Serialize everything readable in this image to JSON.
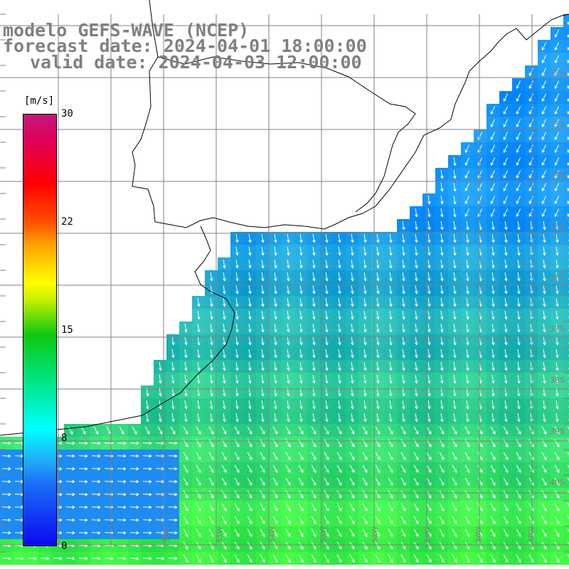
{
  "header": {
    "line1": "modelo GEFS-WAVE (NCEP)",
    "line2": "forecast date: 2024-04-01 18:00:00",
    "line3": "valid date: 2024-04-03 12:00:00"
  },
  "colorbar": {
    "unit": "[m/s]",
    "ticks": [
      "30",
      "22",
      "15",
      "8",
      "0"
    ],
    "colors": [
      "#0a0af0",
      "#20b0f8",
      "#00ffff",
      "#10c810",
      "#ffff00",
      "#ff0000",
      "#c01a7a"
    ]
  },
  "map": {
    "land_color": "#ffffff",
    "coast_color": "#000000",
    "grid_color": "#808080",
    "arrow_color": "#ffffff",
    "lat_labels": [
      "32S",
      "33S",
      "34S",
      "35S",
      "36S",
      "37S",
      "38S",
      "39S",
      "40S"
    ],
    "lon_labels": [
      "56W",
      "55W",
      "54W",
      "53W",
      "52W",
      "51W",
      "50W",
      "49W"
    ]
  }
}
